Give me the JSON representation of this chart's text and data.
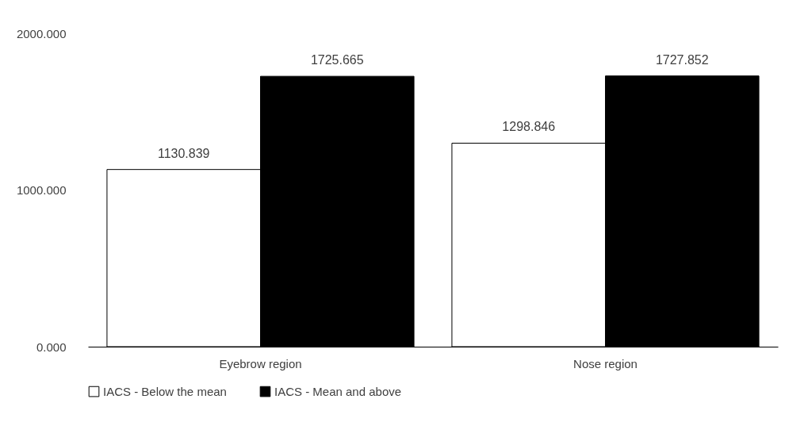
{
  "chart_data": {
    "type": "bar",
    "categories": [
      "Eyebrow region",
      "Nose region"
    ],
    "series": [
      {
        "name": "IACS - Below the mean",
        "color": "#ffffff",
        "values": [
          1130.839,
          1298.846
        ]
      },
      {
        "name": "IACS - Mean and above",
        "color": "#000000",
        "values": [
          1725.665,
          1727.852
        ]
      }
    ],
    "ylim": [
      0,
      2000
    ],
    "yticks": [
      {
        "value": 0,
        "label": "0.000"
      },
      {
        "value": 1000,
        "label": "1000.000"
      },
      {
        "value": 2000,
        "label": "2000.000"
      }
    ],
    "data_labels": true,
    "legend": "bottom"
  }
}
